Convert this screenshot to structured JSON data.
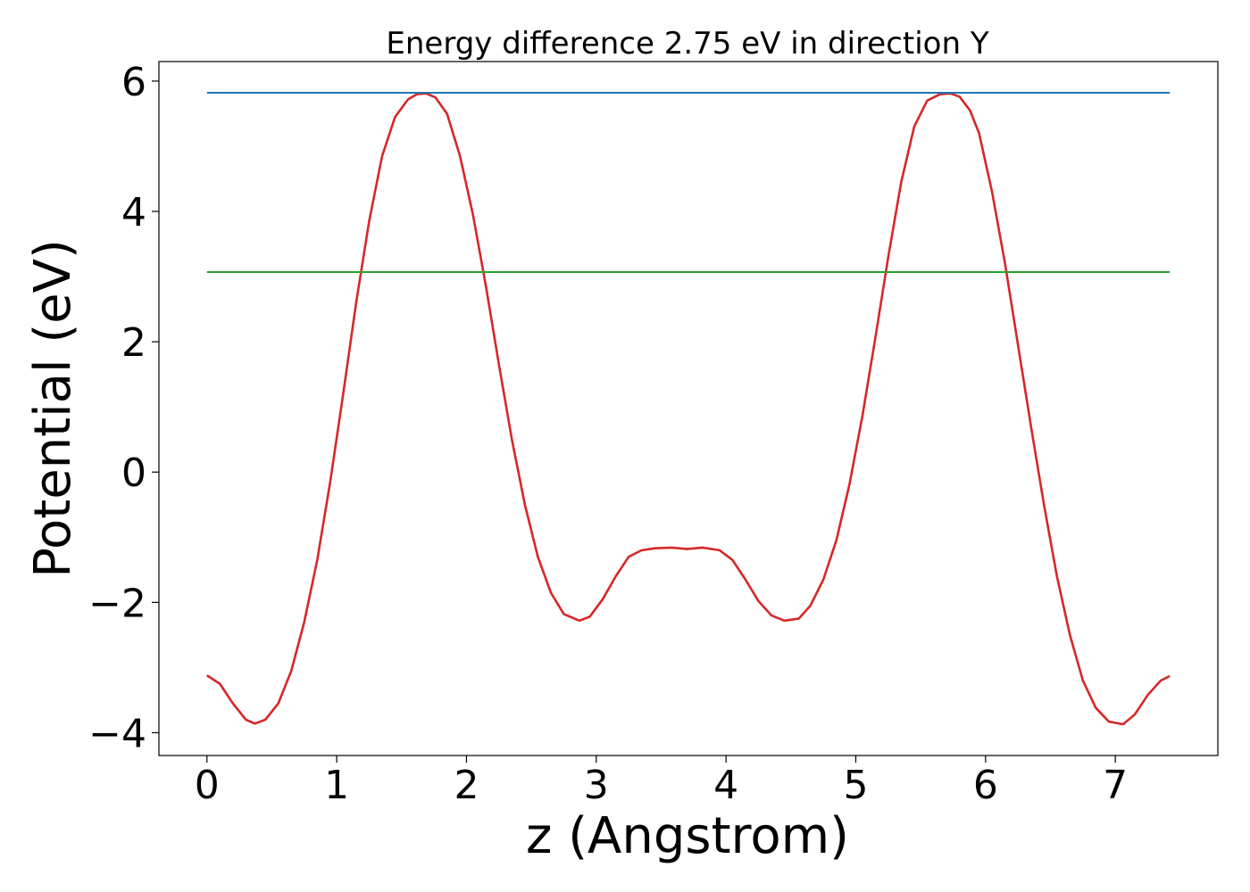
{
  "chart_data": {
    "type": "line",
    "title": "Energy difference 2.75 eV in direction Y",
    "xlabel": "z (Angstrom)",
    "ylabel": "Potential (eV)",
    "xlim": [
      -0.37,
      7.79
    ],
    "ylim": [
      -4.35,
      6.3
    ],
    "xticks": [
      0,
      1,
      2,
      3,
      4,
      5,
      6,
      7
    ],
    "xtick_labels": [
      "0",
      "1",
      "2",
      "3",
      "4",
      "5",
      "6",
      "7"
    ],
    "yticks": [
      -4,
      -2,
      0,
      2,
      4,
      6
    ],
    "ytick_labels": [
      "−4",
      "−2",
      "0",
      "2",
      "4",
      "6"
    ],
    "grid": false,
    "series": [
      {
        "color": "#d62728",
        "x": [
          0,
          0.1,
          0.2,
          0.3,
          0.37,
          0.45,
          0.55,
          0.65,
          0.75,
          0.85,
          0.95,
          1.05,
          1.15,
          1.25,
          1.35,
          1.45,
          1.55,
          1.62,
          1.69,
          1.76,
          1.85,
          1.95,
          2.05,
          2.15,
          2.25,
          2.35,
          2.45,
          2.55,
          2.65,
          2.75,
          2.87,
          2.95,
          3.05,
          3.15,
          3.25,
          3.35,
          3.45,
          3.58,
          3.7,
          3.82,
          3.95,
          4.05,
          4.15,
          4.25,
          4.35,
          4.45,
          4.56,
          4.65,
          4.75,
          4.85,
          4.95,
          5.05,
          5.15,
          5.25,
          5.35,
          5.45,
          5.55,
          5.65,
          5.73,
          5.8,
          5.88,
          5.95,
          6.05,
          6.15,
          6.25,
          6.35,
          6.45,
          6.55,
          6.65,
          6.75,
          6.85,
          6.95,
          7.06,
          7.15,
          7.25,
          7.35,
          7.42
        ],
        "y": [
          -3.12,
          -3.25,
          -3.55,
          -3.8,
          -3.86,
          -3.8,
          -3.55,
          -3.05,
          -2.3,
          -1.35,
          -0.15,
          1.2,
          2.6,
          3.85,
          4.85,
          5.45,
          5.72,
          5.8,
          5.81,
          5.75,
          5.5,
          4.85,
          3.95,
          2.85,
          1.65,
          0.5,
          -0.5,
          -1.3,
          -1.85,
          -2.18,
          -2.28,
          -2.22,
          -1.95,
          -1.6,
          -1.3,
          -1.2,
          -1.17,
          -1.16,
          -1.18,
          -1.16,
          -1.2,
          -1.35,
          -1.65,
          -1.98,
          -2.2,
          -2.28,
          -2.25,
          -2.05,
          -1.65,
          -1.05,
          -0.2,
          0.85,
          2.05,
          3.3,
          4.45,
          5.3,
          5.7,
          5.8,
          5.81,
          5.76,
          5.55,
          5.2,
          4.3,
          3.2,
          1.95,
          0.7,
          -0.5,
          -1.6,
          -2.5,
          -3.2,
          -3.62,
          -3.83,
          -3.87,
          -3.72,
          -3.42,
          -3.2,
          -3.13
        ]
      },
      {
        "color": "#1f77b4",
        "x": [
          0,
          7.42
        ],
        "y": [
          5.82,
          5.82
        ]
      },
      {
        "color": "#2ca02c",
        "x": [
          0,
          7.42
        ],
        "y": [
          3.07,
          3.07
        ]
      }
    ]
  }
}
